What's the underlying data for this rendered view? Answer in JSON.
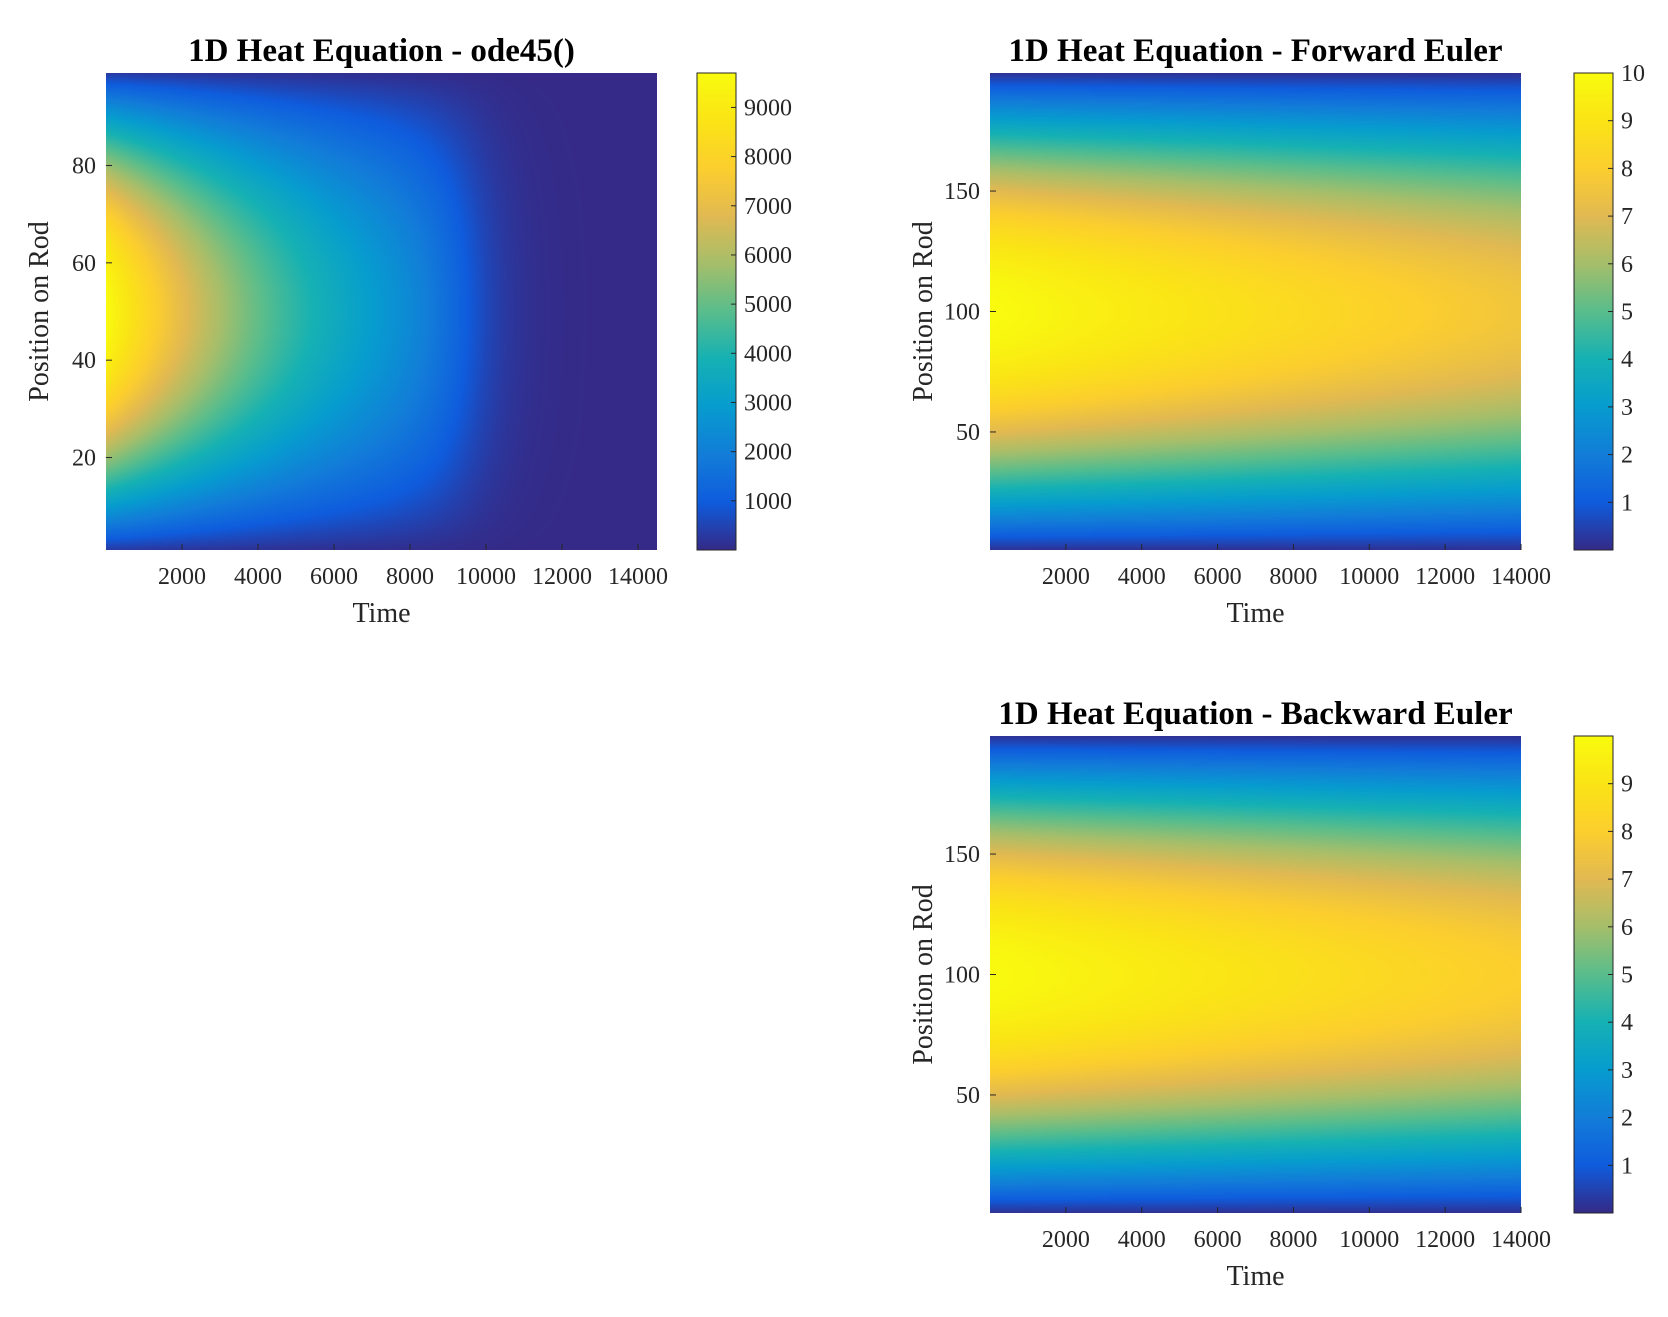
{
  "chart_data": [
    {
      "type": "heatmap",
      "title": "1D Heat Equation - ode45()",
      "xlabel": "Time",
      "ylabel": "Position on Rod",
      "xlim": [
        0,
        14500
      ],
      "ylim": [
        1,
        99
      ],
      "xticks": [
        2000,
        4000,
        6000,
        8000,
        10000,
        12000,
        14000
      ],
      "yticks": [
        20,
        40,
        60,
        80
      ],
      "colorbar": {
        "min": 0,
        "max": 9700,
        "ticks": [
          1000,
          2000,
          3000,
          4000,
          5000,
          6000,
          7000,
          8000,
          9000
        ]
      },
      "peak_value": 9700,
      "decay_time_constant": 6000,
      "falloff_start_time": 9500,
      "falloff_width": 2000,
      "colormap": "parula"
    },
    {
      "type": "heatmap",
      "title": "1D Heat Equation - Forward Euler",
      "xlabel": "Time",
      "ylabel": "Position on Rod",
      "xlim": [
        0,
        14000
      ],
      "ylim": [
        1,
        199
      ],
      "xticks": [
        2000,
        4000,
        6000,
        8000,
        10000,
        12000,
        14000
      ],
      "yticks": [
        50,
        100,
        150
      ],
      "colorbar": {
        "min": 0,
        "max": 10,
        "ticks": [
          1,
          2,
          3,
          4,
          5,
          6,
          7,
          8,
          9,
          10
        ]
      },
      "peak_value": 10,
      "final_peak_value": 7.6,
      "colormap": "parula"
    },
    {
      "type": "heatmap",
      "title": "1D Heat Equation - Backward Euler",
      "xlabel": "Time",
      "ylabel": "Position on Rod",
      "xlim": [
        0,
        14000
      ],
      "ylim": [
        1,
        199
      ],
      "xticks": [
        2000,
        4000,
        6000,
        8000,
        10000,
        12000,
        14000
      ],
      "yticks": [
        50,
        100,
        150
      ],
      "colorbar": {
        "min": 0,
        "max": 10,
        "ticks": [
          1,
          2,
          3,
          4,
          5,
          6,
          7,
          8,
          9
        ]
      },
      "peak_value": 9.95,
      "final_peak_value": 8.0,
      "colormap": "parula"
    }
  ]
}
